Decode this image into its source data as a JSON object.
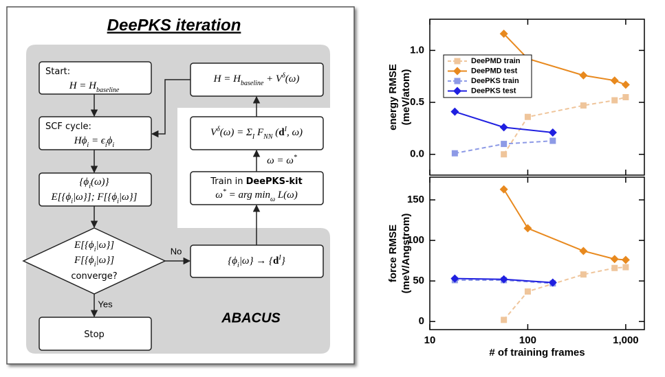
{
  "diagram": {
    "title": "DeePKS iteration",
    "label": "ABACUS",
    "nodes": [
      {
        "lines": [
          [
            "Start:"
          ],
          [
            "H = H",
            {
              "t": "baseline",
              "s": "sub"
            }
          ]
        ]
      },
      {
        "lines": [
          [
            "SCF cycle:"
          ],
          [
            "Hϕ",
            {
              "t": "i",
              "s": "sub"
            },
            " = ϵ",
            {
              "t": "i",
              "s": "sub"
            },
            "ϕ",
            {
              "t": "i",
              "s": "sub"
            }
          ]
        ]
      },
      {
        "lines": [
          [
            "{ϕ",
            {
              "t": "i",
              "s": "sub"
            },
            "(ω)}"
          ],
          [
            "E[{ϕ",
            {
              "t": "i",
              "s": "sub"
            },
            "|ω}]; F[{ϕ",
            {
              "t": "i",
              "s": "sub"
            },
            "|ω}]"
          ]
        ]
      },
      {
        "lines": [
          [
            "E[{ϕ",
            {
              "t": "i",
              "s": "sub"
            },
            "|ω}]"
          ],
          [
            "F[{ϕ",
            {
              "t": "i",
              "s": "sub"
            },
            "|ω}]"
          ],
          [
            "converge?"
          ]
        ]
      },
      {
        "lines": [
          [
            "Stop"
          ]
        ]
      },
      {
        "lines": [
          [
            "{ϕ",
            {
              "t": "i",
              "s": "sub"
            },
            "|ω} → {",
            {
              "t": "d",
              "s": "bold"
            },
            {
              "t": "I",
              "s": "sup"
            },
            "}"
          ]
        ]
      },
      {
        "lines": [
          [
            "Train in ",
            {
              "t": "DeePKS-kit",
              "s": "bold"
            }
          ],
          [
            "ω",
            {
              "t": "*",
              "s": "sup"
            },
            " = arg min",
            {
              "t": "ω",
              "s": "sub"
            },
            " L(ω)"
          ]
        ]
      },
      {
        "lines": [
          [
            "V",
            {
              "t": "δ",
              "s": "sup"
            },
            "(ω) = Σ",
            {
              "t": "I",
              "s": "sub"
            },
            " F",
            {
              "t": "NN",
              "s": "sub"
            },
            " (",
            {
              "t": "d",
              "s": "bold"
            },
            {
              "t": "I",
              "s": "sup"
            },
            ", ω)"
          ]
        ]
      },
      {
        "lines": [
          [
            "H = H",
            {
              "t": "baseline",
              "s": "sub"
            },
            " + V",
            {
              "t": "δ",
              "s": "sup"
            },
            "(ω)"
          ]
        ]
      }
    ],
    "edge_labels": {
      "no": "No",
      "yes": "Yes",
      "update": [
        "ω = ω",
        {
          "t": "*",
          "s": "sup"
        }
      ]
    }
  },
  "chart_data": [
    {
      "type": "line",
      "xscale": "log",
      "xlim": [
        10,
        1550
      ],
      "xticks": [
        10,
        100,
        1000
      ],
      "xticklabels": false,
      "ylim": [
        -0.2,
        1.3
      ],
      "yticks": [
        {
          "value": 0,
          "label": "0.0"
        },
        {
          "value": 0.5,
          "label": "0.5"
        },
        {
          "value": 1,
          "label": "1.0"
        }
      ],
      "ylabel": [
        "energy RMSE",
        "(meV/atom)"
      ],
      "legend": "upper left",
      "series": [
        {
          "name": "DeePMD train",
          "color": "#efc59b",
          "marker": "square",
          "dashed": true,
          "x": [
            57,
            100,
            370,
            770,
            1000
          ],
          "values": [
            0.0,
            0.36,
            0.47,
            0.52,
            0.55
          ]
        },
        {
          "name": "DeePMD test",
          "color": "#e8891e",
          "marker": "diamond",
          "dashed": false,
          "x": [
            57,
            100,
            370,
            770,
            1000
          ],
          "values": [
            1.16,
            0.92,
            0.76,
            0.71,
            0.67
          ]
        },
        {
          "name": "DeePKS train",
          "color": "#8d9ae6",
          "marker": "square",
          "dashed": true,
          "x": [
            18,
            57,
            180
          ],
          "values": [
            0.01,
            0.1,
            0.13
          ]
        },
        {
          "name": "DeePKS test",
          "color": "#1f1fe0",
          "marker": "diamond",
          "dashed": false,
          "x": [
            18,
            57,
            180
          ],
          "values": [
            0.41,
            0.26,
            0.21
          ]
        }
      ]
    },
    {
      "type": "line",
      "xscale": "log",
      "xlim": [
        10,
        1550
      ],
      "xticks": [
        10,
        100,
        {
          "value": 1000,
          "label": "1,000"
        }
      ],
      "xticklabels": true,
      "ylim": [
        -10,
        178
      ],
      "yticks": [
        0,
        50,
        100,
        150
      ],
      "ylabel": [
        "force RMSE",
        "(meV/Angstrom)"
      ],
      "xlabel": "# of training frames",
      "series": [
        {
          "color": "#efc59b",
          "marker": "square",
          "dashed": true,
          "x": [
            57,
            100,
            370,
            770,
            1000
          ],
          "values": [
            2,
            37,
            58,
            66,
            67
          ]
        },
        {
          "color": "#e8891e",
          "marker": "diamond",
          "dashed": false,
          "x": [
            57,
            100,
            370,
            770,
            1000
          ],
          "values": [
            163,
            115,
            87,
            77,
            76
          ]
        },
        {
          "color": "#8d9ae6",
          "marker": "square",
          "dashed": true,
          "x": [
            18,
            57,
            180
          ],
          "values": [
            51,
            51,
            47
          ]
        },
        {
          "color": "#1f1fe0",
          "marker": "diamond",
          "dashed": false,
          "x": [
            18,
            57,
            180
          ],
          "values": [
            53,
            52,
            48
          ]
        }
      ]
    }
  ]
}
